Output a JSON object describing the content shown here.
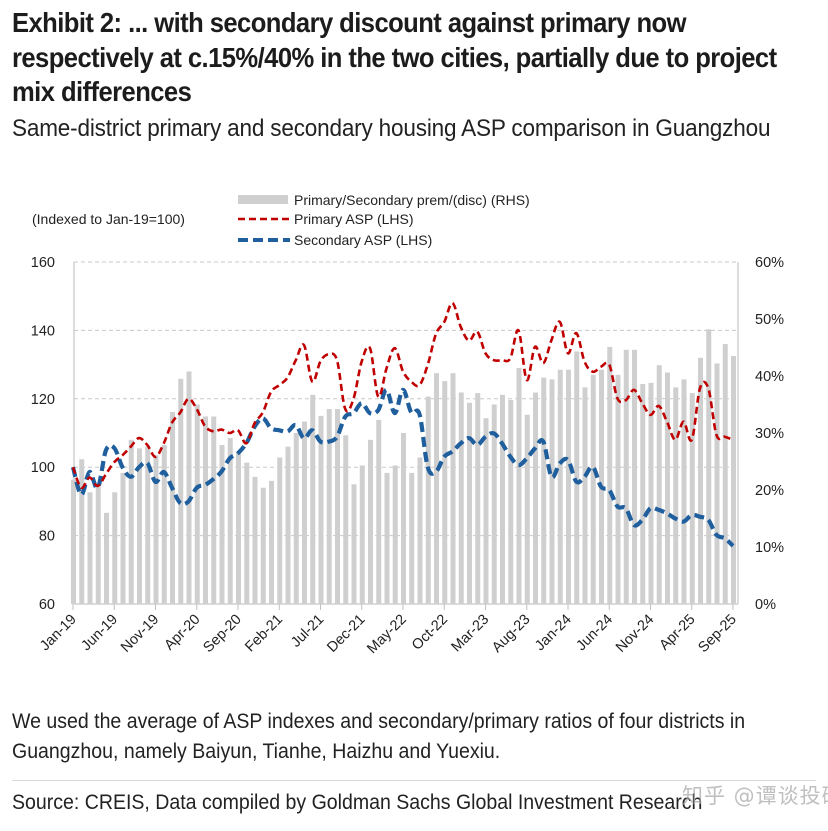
{
  "header": {
    "title": "Exhibit 2: ... with secondary discount against primary now respectively at c.15%/40% in the two cities, partially due to project mix differences",
    "subtitle": "Same-district primary and secondary housing ASP comparison in Guangzhou"
  },
  "footer": {
    "note": "We used the average of ASP indexes and secondary/primary ratios of four districts in Guangzhou, namely Baiyun, Tianhe, Haizhu and Yuexiu.",
    "source": "Source: CREIS, Data compiled by Goldman Sachs Global Investment Research",
    "watermark": "知乎 @谭谈投研"
  },
  "colors": {
    "bars": "#cfcfcf",
    "primary": "#c00000",
    "secondary": "#1f5f9e",
    "grid": "#c8c8c8"
  },
  "chart_data": {
    "type": "bar+line",
    "title": "Same-district primary and secondary housing ASP comparison in Guangzhou",
    "annotation": "(Indexed to Jan-19=100)",
    "x_start": "Jan-19",
    "x_end": "Sep-25",
    "x_frequency": "monthly",
    "x_tick_labels": [
      "Jan-19",
      "Jun-19",
      "Nov-19",
      "Apr-20",
      "Sep-20",
      "Feb-21",
      "Jul-21",
      "Dec-21",
      "May-22",
      "Oct-22",
      "Mar-23",
      "Aug-23",
      "Jan-24",
      "Jun-24",
      "Nov-24",
      "Apr-25",
      "Sep-25"
    ],
    "y_left": {
      "label": "",
      "ylim": [
        60,
        160
      ],
      "ticks": [
        "60",
        "80",
        "100",
        "120",
        "140",
        "160"
      ],
      "tick_values": [
        60,
        80,
        100,
        120,
        140,
        160
      ]
    },
    "y_right": {
      "label": "",
      "ylim": [
        0,
        60
      ],
      "ticks": [
        "0%",
        "10%",
        "20%",
        "30%",
        "40%",
        "50%",
        "60%"
      ],
      "tick_values": [
        0,
        10,
        20,
        30,
        40,
        50,
        60
      ]
    },
    "grid": true,
    "legend_position": "top",
    "series": [
      {
        "name": "Primary/Secondary prem/(disc) (RHS)",
        "type": "bar",
        "axis": "right",
        "unit": "%",
        "values": [
          21.8,
          25.4,
          19.6,
          20.5,
          16.0,
          19.6,
          23.0,
          28.8,
          27.3,
          27.6,
          26.1,
          27.9,
          33.7,
          39.5,
          40.8,
          35.0,
          32.9,
          32.9,
          27.9,
          29.1,
          26.7,
          24.8,
          22.3,
          20.4,
          21.6,
          25.7,
          27.6,
          30.0,
          32.0,
          36.7,
          33.0,
          34.2,
          34.2,
          29.6,
          21.0,
          24.3,
          28.8,
          32.3,
          23.0,
          24.3,
          30.0,
          23.0,
          25.7,
          36.4,
          40.5,
          39.1,
          40.5,
          37.1,
          35.3,
          37.0,
          32.6,
          35.0,
          36.7,
          35.8,
          41.4,
          33.2,
          37.1,
          39.7,
          39.4,
          41.1,
          41.1,
          44.3,
          38.0,
          40.2,
          41.1,
          45.1,
          40.2,
          44.6,
          44.6,
          38.6,
          38.8,
          41.9,
          40.6,
          38.0,
          39.4,
          37.0,
          43.2,
          48.2,
          42.2,
          45.6,
          43.5
        ]
      },
      {
        "name": "Primary ASP (LHS)",
        "type": "line",
        "style": "dashed",
        "axis": "left",
        "values": [
          100,
          94,
          97,
          94.5,
          98,
          101.5,
          103.5,
          106,
          108.5,
          106.5,
          103,
          107,
          113,
          116,
          120,
          117,
          112,
          110.5,
          111,
          110,
          110.8,
          107,
          112.8,
          116,
          122,
          124,
          126.2,
          131.3,
          135.7,
          125,
          131,
          133,
          131.3,
          117,
          120,
          131,
          134.8,
          120.6,
          128.9,
          134.8,
          128,
          125,
          124,
          130,
          139,
          142.5,
          148,
          141,
          137,
          139.6,
          133.3,
          131.3,
          131.3,
          131.8,
          140,
          125.5,
          135.2,
          130.4,
          137.2,
          142.5,
          133.3,
          139.2,
          130.9,
          127.9,
          129.4,
          129.9,
          120.1,
          119.6,
          122.6,
          118.7,
          115.3,
          117.9,
          113.3,
          108,
          113.3,
          108,
          123.1,
          123.1,
          109.4,
          108.9,
          108
        ]
      },
      {
        "name": "Secondary ASP (LHS)",
        "type": "line",
        "style": "dashed",
        "axis": "left",
        "values": [
          100,
          92,
          98.6,
          94,
          105,
          105.6,
          100,
          97.2,
          100,
          101.2,
          95.7,
          98.6,
          94,
          89.5,
          90,
          94,
          94.8,
          96.5,
          98.7,
          102.6,
          104.1,
          107,
          111.8,
          114.3,
          111.4,
          110.8,
          110.4,
          112.3,
          108.4,
          110.8,
          107.5,
          107.5,
          108.9,
          114.8,
          115.8,
          118.7,
          115.8,
          116.7,
          122.6,
          115.8,
          122.6,
          116,
          115.5,
          100,
          98.7,
          103.1,
          104.6,
          107,
          108.5,
          106.5,
          108.9,
          109.9,
          107,
          103.1,
          100.6,
          102.6,
          105.5,
          107.5,
          97.2,
          101.1,
          102.1,
          95.8,
          97.2,
          100.1,
          94.3,
          93.3,
          88.5,
          88,
          83.1,
          84.6,
          88,
          87.5,
          86.5,
          85,
          84.1,
          86,
          85.5,
          84.6,
          80.2,
          79.2,
          77
        ]
      }
    ],
    "legend": [
      {
        "label": "Primary/Secondary prem/(disc) (RHS)",
        "marker": "bar"
      },
      {
        "label": "Primary ASP (LHS)",
        "marker": "red-dashed-line"
      },
      {
        "label": "Secondary ASP (LHS)",
        "marker": "blue-dashed-line"
      }
    ]
  }
}
